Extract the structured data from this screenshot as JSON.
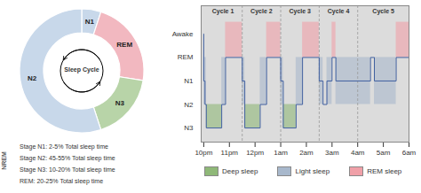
{
  "chart_data": [
    {
      "type": "donut",
      "values": [
        0.05,
        0.225,
        0.175,
        0.55
      ],
      "labels": [
        "N1",
        "REM",
        "N3",
        "N2"
      ],
      "colors": [
        "#c8d8ea",
        "#f2b8c0",
        "#b8d4a8",
        "#c8d8ea"
      ],
      "center_label": "Sleep Cycle",
      "side_label": "NREM",
      "annotations": [
        "Stage N1: 2-5% Total sleep time",
        "Stage N2: 45-55% Total sleep time",
        "Stage N3: 10-20% Total sleep time",
        "REM: 20-25% Total sleep time"
      ]
    },
    {
      "type": "line",
      "line_style": "step",
      "color": "#4060a0",
      "background_color": "#dcdcdc",
      "grid": false,
      "legend": "bottom",
      "x": [
        0.0,
        0.0,
        0.05,
        0.05,
        0.1,
        0.1,
        0.7,
        0.7,
        0.85,
        0.85,
        1.5,
        1.5,
        1.6,
        1.6,
        2.2,
        2.2,
        2.45,
        2.45,
        3.0,
        3.0,
        3.1,
        3.1,
        3.6,
        3.6,
        3.85,
        3.85,
        4.5,
        4.5,
        4.65,
        4.65,
        4.8,
        4.8,
        5.0,
        5.0,
        5.15,
        5.15,
        6.5,
        6.5,
        6.65,
        6.65,
        7.5,
        7.5,
        8.0
      ],
      "values": [
        4,
        2,
        2,
        1,
        1,
        0,
        0,
        1,
        1,
        3,
        3,
        2,
        2,
        0,
        0,
        1,
        1,
        3,
        3,
        2,
        2,
        0,
        0,
        1,
        1,
        3,
        3,
        2,
        2,
        1,
        1,
        2,
        2,
        3,
        3,
        2,
        2,
        3,
        3,
        2,
        2,
        3,
        3
      ],
      "xlim": [
        -0.1,
        8.0
      ],
      "xticks": [
        {
          "value": 0,
          "label": "10pm"
        },
        {
          "value": 1,
          "label": "11pm"
        },
        {
          "value": 2,
          "label": "12pm"
        },
        {
          "value": 3,
          "label": "1am"
        },
        {
          "value": 4,
          "label": "2am"
        },
        {
          "value": 5,
          "label": "3am"
        },
        {
          "value": 6,
          "label": "4am"
        },
        {
          "value": 7,
          "label": "5am"
        },
        {
          "value": 8,
          "label": "6am"
        }
      ],
      "ylim": [
        -0.6,
        5.2
      ],
      "yticks": [
        {
          "value": 4,
          "label": "Awake"
        },
        {
          "value": 3,
          "label": "REM"
        },
        {
          "value": 2,
          "label": "N1"
        },
        {
          "value": 1,
          "label": "N2"
        },
        {
          "value": 0,
          "label": "N3"
        }
      ],
      "cycle_bounds": [
        0.0,
        1.5,
        3.0,
        4.5,
        6.0,
        8.0
      ],
      "cycle_labels": [
        "Cycle 1",
        "Cycle 2",
        "Cycle 3",
        "Cycle 4",
        "Cycle 5"
      ],
      "bands": [
        {
          "name": "Deep sleep",
          "color": "#8fb878",
          "y": [
            0,
            1
          ],
          "regions": [
            [
              0.1,
              0.7
            ],
            [
              1.6,
              2.2
            ],
            [
              3.1,
              3.6
            ]
          ]
        },
        {
          "name": "Light sleep",
          "color": "#a8b8cc",
          "y": [
            1,
            3
          ],
          "regions": [
            [
              0.0,
              0.1
            ],
            [
              0.7,
              0.85
            ],
            [
              1.5,
              1.6
            ],
            [
              2.2,
              2.45
            ],
            [
              3.0,
              3.1
            ],
            [
              3.6,
              3.85
            ],
            [
              4.5,
              4.65
            ],
            [
              4.8,
              5.0
            ],
            [
              5.15,
              6.5
            ],
            [
              6.65,
              7.5
            ]
          ]
        },
        {
          "name": "REM sleep",
          "color": "#f0a0a8",
          "y": [
            3,
            4.5
          ],
          "regions": [
            [
              0.85,
              1.5
            ],
            [
              2.45,
              3.0
            ],
            [
              3.85,
              4.5
            ],
            [
              5.0,
              5.15
            ],
            [
              7.5,
              8.0
            ]
          ]
        }
      ]
    }
  ]
}
